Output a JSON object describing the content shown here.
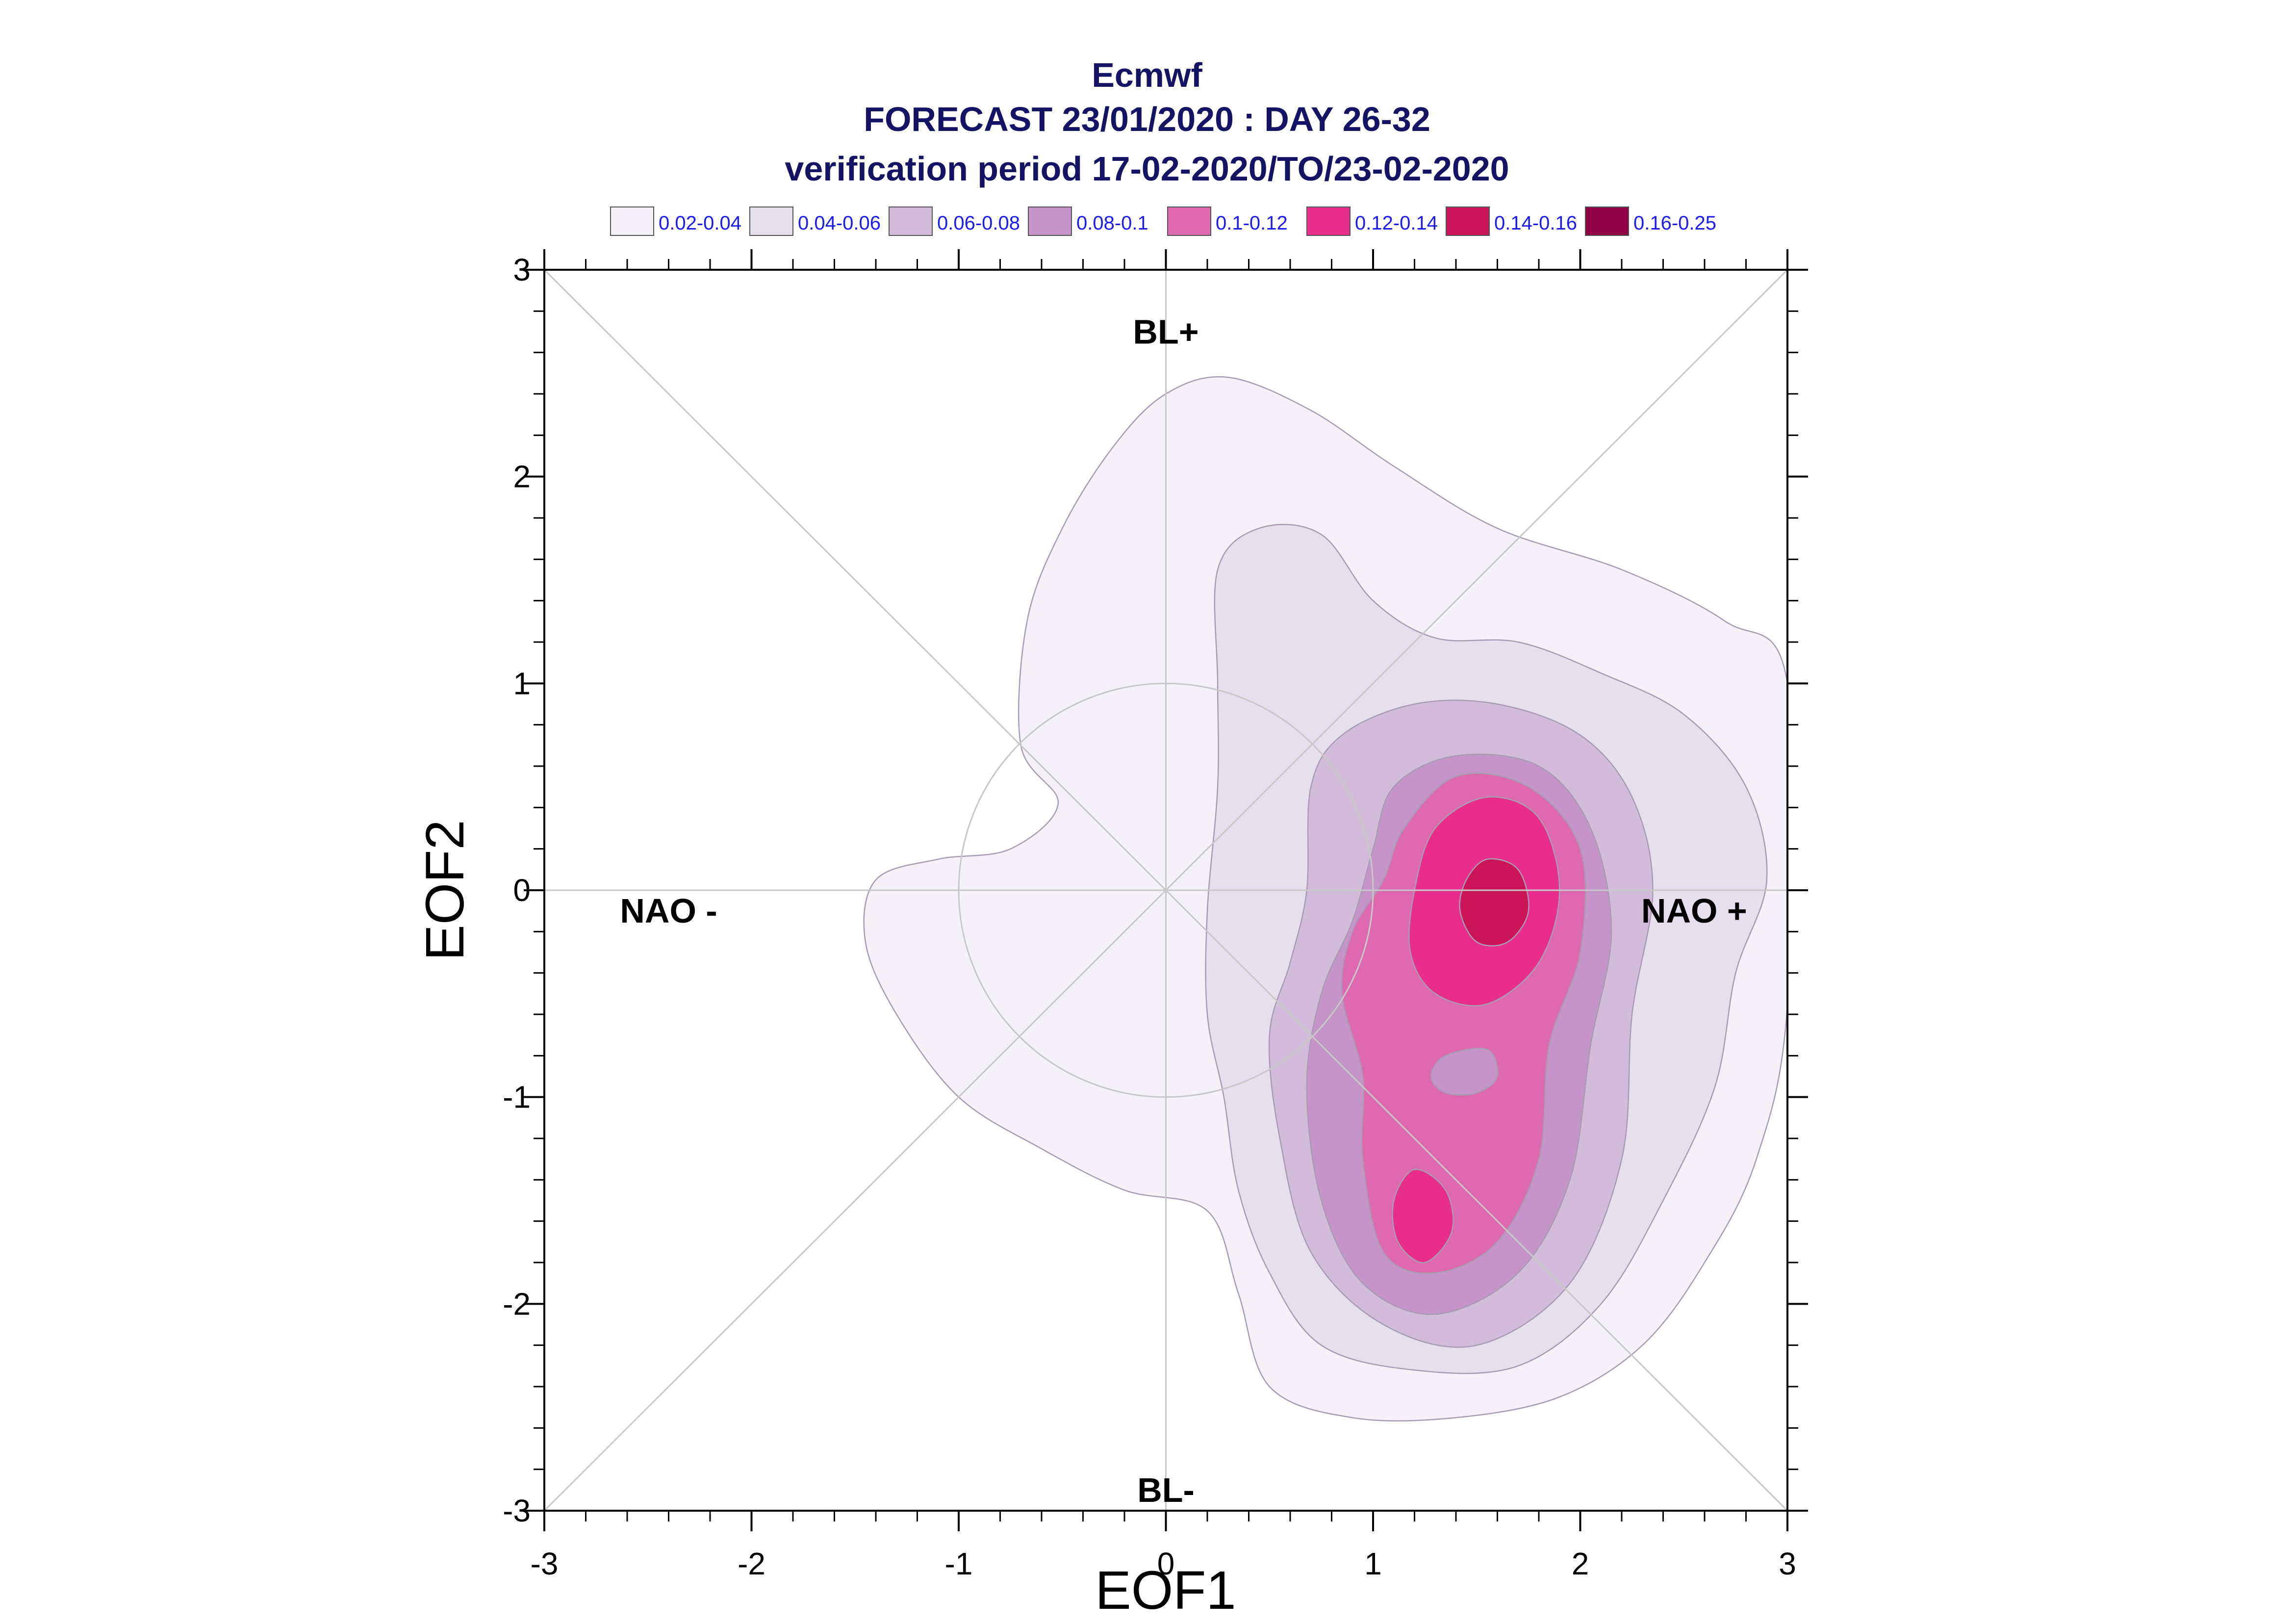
{
  "titles": {
    "line1": "Ecmwf",
    "line2": "FORECAST 23/01/2020 : DAY 26-32",
    "line3": "verification period 17-02-2020/TO/23-02-2020"
  },
  "chart_data": {
    "type": "contour",
    "xlabel": "EOF1",
    "ylabel": "EOF2",
    "xlim": [
      -3,
      3
    ],
    "ylim": [
      -3,
      3
    ],
    "x_ticks": [
      "-3",
      "-2",
      "-1",
      "0",
      "1",
      "2",
      "3"
    ],
    "y_ticks": [
      "-3",
      "-2",
      "-1",
      "0",
      "1",
      "2",
      "3"
    ],
    "regions": [
      {
        "label": "BL+",
        "x": 0,
        "y": 2.7
      },
      {
        "label": "BL-",
        "x": 0,
        "y": -2.9
      },
      {
        "label": "NAO -",
        "x": -2.4,
        "y": -0.1
      },
      {
        "label": "NAO +",
        "x": 2.55,
        "y": -0.1
      }
    ],
    "reference_circle_radius": 1,
    "legend": [
      {
        "label": "0.02-0.04",
        "color": "#f4f1f8"
      },
      {
        "label": "0.04-0.06",
        "color": "#e6dfee"
      },
      {
        "label": "0.06-0.08",
        "color": "#d3bcd9"
      },
      {
        "label": "0.08-0.1",
        "color": "#c594c8"
      },
      {
        "label": "0.1-0.12",
        "color": "#df69b0"
      },
      {
        "label": "0.12-0.14",
        "color": "#e92d8c"
      },
      {
        "label": "0.14-0.16",
        "color": "#cc1459"
      },
      {
        "label": "0.16-0.25",
        "color": "#900045"
      }
    ],
    "contours": [
      {
        "level": "0.02-0.04",
        "points": [
          [
            -0.7,
            0.7
          ],
          [
            -0.67,
            1.3
          ],
          [
            -0.5,
            1.75
          ],
          [
            -0.25,
            2.15
          ],
          [
            0,
            2.4
          ],
          [
            0.3,
            2.48
          ],
          [
            0.7,
            2.32
          ],
          [
            1.1,
            2.05
          ],
          [
            1.6,
            1.75
          ],
          [
            2.2,
            1.55
          ],
          [
            2.7,
            1.3
          ],
          [
            3,
            1
          ],
          [
            3,
            -0.55
          ],
          [
            2.85,
            -1.3
          ],
          [
            2.6,
            -1.8
          ],
          [
            2.3,
            -2.2
          ],
          [
            1.9,
            -2.45
          ],
          [
            1.4,
            -2.55
          ],
          [
            0.9,
            -2.55
          ],
          [
            0.5,
            -2.4
          ],
          [
            0.35,
            -1.95
          ],
          [
            0.2,
            -1.55
          ],
          [
            -0.2,
            -1.45
          ],
          [
            -0.6,
            -1.25
          ],
          [
            -1,
            -1
          ],
          [
            -1.3,
            -0.6
          ],
          [
            -1.45,
            -0.25
          ],
          [
            -1.4,
            0.05
          ],
          [
            -1.1,
            0.15
          ],
          [
            -0.75,
            0.2
          ],
          [
            -0.52,
            0.42
          ]
        ]
      },
      {
        "level": "0.04-0.06",
        "points": [
          [
            0.25,
            1.55
          ],
          [
            0.45,
            1.75
          ],
          [
            0.75,
            1.72
          ],
          [
            1,
            1.4
          ],
          [
            1.3,
            1.22
          ],
          [
            1.7,
            1.2
          ],
          [
            2.1,
            1.05
          ],
          [
            2.5,
            0.85
          ],
          [
            2.8,
            0.5
          ],
          [
            2.9,
            0.05
          ],
          [
            2.75,
            -0.4
          ],
          [
            2.65,
            -0.95
          ],
          [
            2.4,
            -1.5
          ],
          [
            2.1,
            -2
          ],
          [
            1.7,
            -2.3
          ],
          [
            1.2,
            -2.32
          ],
          [
            0.75,
            -2.2
          ],
          [
            0.5,
            -1.85
          ],
          [
            0.35,
            -1.45
          ],
          [
            0.28,
            -1
          ],
          [
            0.2,
            -0.6
          ],
          [
            0.2,
            -0.1
          ],
          [
            0.25,
            0.5
          ],
          [
            0.25,
            1
          ]
        ]
      },
      {
        "level": "0.06-0.08",
        "points": [
          [
            0.7,
            0.5
          ],
          [
            0.85,
            0.75
          ],
          [
            1.2,
            0.9
          ],
          [
            1.6,
            0.9
          ],
          [
            2,
            0.75
          ],
          [
            2.25,
            0.45
          ],
          [
            2.35,
            0
          ],
          [
            2.25,
            -0.6
          ],
          [
            2.2,
            -1.3
          ],
          [
            1.95,
            -1.9
          ],
          [
            1.5,
            -2.2
          ],
          [
            1.05,
            -2.1
          ],
          [
            0.7,
            -1.75
          ],
          [
            0.55,
            -1.2
          ],
          [
            0.5,
            -0.7
          ],
          [
            0.6,
            -0.35
          ],
          [
            0.68,
            0
          ]
        ]
      },
      {
        "level": "0.08-0.1",
        "points": [
          [
            1.1,
            0.5
          ],
          [
            1.4,
            0.65
          ],
          [
            1.8,
            0.6
          ],
          [
            2.05,
            0.3
          ],
          [
            2.15,
            -0.2
          ],
          [
            2.05,
            -0.75
          ],
          [
            1.95,
            -1.4
          ],
          [
            1.7,
            -1.85
          ],
          [
            1.3,
            -2.05
          ],
          [
            0.95,
            -1.9
          ],
          [
            0.75,
            -1.5
          ],
          [
            0.68,
            -0.95
          ],
          [
            0.75,
            -0.5
          ],
          [
            0.9,
            -0.15
          ],
          [
            1,
            0.2
          ]
        ]
      },
      {
        "level": "0.1-0.12",
        "points": [
          [
            1.15,
            0.3
          ],
          [
            1.4,
            0.55
          ],
          [
            1.75,
            0.5
          ],
          [
            2,
            0.2
          ],
          [
            2,
            -0.3
          ],
          [
            1.85,
            -0.75
          ],
          [
            1.8,
            -1.3
          ],
          [
            1.6,
            -1.7
          ],
          [
            1.3,
            -1.85
          ],
          [
            1.05,
            -1.75
          ],
          [
            0.95,
            -1.3
          ],
          [
            0.95,
            -0.9
          ],
          [
            0.85,
            -0.5
          ],
          [
            0.9,
            -0.2
          ],
          [
            1.05,
            0.05
          ]
        ]
      },
      {
        "level": "0.12-0.14",
        "points": [
          [
            1.3,
            0.3
          ],
          [
            1.55,
            0.45
          ],
          [
            1.8,
            0.35
          ],
          [
            1.9,
            0
          ],
          [
            1.8,
            -0.35
          ],
          [
            1.55,
            -0.55
          ],
          [
            1.3,
            -0.5
          ],
          [
            1.18,
            -0.3
          ],
          [
            1.2,
            0
          ]
        ]
      },
      {
        "level": "0.12-0.14",
        "points": [
          [
            1.2,
            -1.35
          ],
          [
            1.35,
            -1.45
          ],
          [
            1.38,
            -1.65
          ],
          [
            1.25,
            -1.8
          ],
          [
            1.12,
            -1.7
          ],
          [
            1.1,
            -1.5
          ]
        ]
      },
      {
        "level": "0.14-0.16",
        "points": [
          [
            1.55,
            0.15
          ],
          [
            1.7,
            0.1
          ],
          [
            1.75,
            -0.1
          ],
          [
            1.65,
            -0.25
          ],
          [
            1.5,
            -0.25
          ],
          [
            1.42,
            -0.1
          ],
          [
            1.45,
            0.05
          ]
        ]
      },
      {
        "level": "0.08-0.1",
        "points": [
          [
            1.35,
            -0.8
          ],
          [
            1.55,
            -0.77
          ],
          [
            1.6,
            -0.9
          ],
          [
            1.5,
            -0.98
          ],
          [
            1.35,
            -0.98
          ],
          [
            1.28,
            -0.9
          ]
        ]
      }
    ]
  }
}
